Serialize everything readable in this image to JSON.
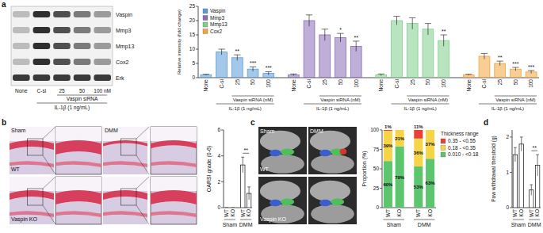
{
  "panel_labels": [
    "a",
    "b",
    "c",
    "d"
  ],
  "blot": {
    "bands": [
      "Vaspin",
      "Mmp3",
      "Mmp13",
      "Cox2",
      "Erk"
    ],
    "lanes": [
      "None",
      "C-si",
      "25",
      "50",
      "100 nM"
    ],
    "sirna_label": "Vaspin siRNA",
    "treatment_label": "IL-1β (1 ng/mL)"
  },
  "images_b": {
    "rows": [
      "WT",
      "Vaspin KO"
    ],
    "columns": [
      "Sham",
      "DMM"
    ]
  },
  "images_c": {
    "rows": [
      "WT",
      "Vaspin KO"
    ],
    "columns": [
      "Sham",
      "DMM"
    ]
  },
  "chart_data": [
    {
      "type": "bar",
      "y_label": "Relative intensity (fold change)",
      "categories": [
        "None",
        "C-si",
        "25",
        "50",
        "100"
      ],
      "group_label": "Vaspin siRNA (nM)",
      "treatment_label": "IL-1β (1 ng/mL)",
      "legend": "upper left",
      "ylim": [
        0,
        25
      ],
      "yticks": [
        0,
        5,
        10,
        15,
        20,
        25
      ],
      "series": [
        {
          "name": "Vaspin",
          "color": "#5a9bd8",
          "values": [
            1,
            9,
            7,
            3,
            1.5
          ],
          "errors": [
            0.2,
            1,
            1,
            0.8,
            0.6
          ],
          "significance": [
            null,
            null,
            "**",
            "***",
            "***"
          ]
        },
        {
          "name": "Mmp3",
          "color": "#8a6cb6",
          "values": [
            1,
            20,
            15,
            14,
            11
          ],
          "errors": [
            0.3,
            2,
            2,
            1.5,
            1.8
          ],
          "significance": [
            null,
            null,
            null,
            "*",
            "**"
          ]
        },
        {
          "name": "Mmp13",
          "color": "#7dcf8a",
          "values": [
            1,
            20,
            19,
            17,
            13
          ],
          "errors": [
            0.3,
            1.5,
            2,
            2,
            2
          ],
          "significance": [
            null,
            null,
            null,
            null,
            "**"
          ]
        },
        {
          "name": "Cox2",
          "color": "#f0a540",
          "values": [
            1,
            7.5,
            5,
            3,
            2
          ],
          "errors": [
            0.2,
            1,
            0.8,
            0.6,
            0.5
          ],
          "significance": [
            null,
            null,
            "**",
            "***",
            "***"
          ]
        }
      ]
    },
    {
      "type": "bar",
      "y_label": "OARSI grade (0-6)",
      "categories": [
        "WT",
        "KO",
        "WT",
        "KO"
      ],
      "groups": [
        "Sham",
        "DMM"
      ],
      "values": [
        0,
        0,
        3.3,
        1.1
      ],
      "errors": [
        0,
        0,
        0.6,
        0.5
      ],
      "color": "#ffffff",
      "annotations": [
        "**"
      ],
      "ylim": [
        0,
        6
      ],
      "yticks": [
        0,
        2,
        4,
        6
      ]
    },
    {
      "type": "bar",
      "stacked": true,
      "y_label": "Proportion (%)",
      "categories": [
        "WT",
        "KO",
        "WT",
        "KO"
      ],
      "groups": [
        "Sham",
        "DMM"
      ],
      "legend": "right",
      "legend_title": "Thickness range",
      "data_labels": true,
      "ylim": [
        0,
        100
      ],
      "yticks": [
        0,
        25,
        50,
        75,
        100
      ],
      "series": [
        {
          "name": "0.010 - <0.18",
          "color": "#5cc56e",
          "values": [
            60,
            79,
            53,
            63
          ],
          "value_labels": [
            "60%",
            "79%",
            "53%",
            "63%"
          ]
        },
        {
          "name": "0.18 - <0.35",
          "color": "#f5d547",
          "values": [
            39,
            21,
            36,
            37
          ],
          "value_labels": [
            "39%",
            "21%",
            "36%",
            "37%"
          ]
        },
        {
          "name": "0.35 - <0.55",
          "color": "#e8413a",
          "values": [
            1,
            0,
            11,
            0
          ],
          "value_labels": [
            "1%",
            null,
            "11%",
            null
          ]
        }
      ]
    },
    {
      "type": "bar",
      "y_label": "Paw withdrawal threshold (g)",
      "categories": [
        "WT",
        "KO",
        "WT",
        "KO"
      ],
      "groups": [
        "Sham",
        "DMM"
      ],
      "values": [
        1.5,
        1.8,
        0.5,
        1.2
      ],
      "errors": [
        0.2,
        0.2,
        0.15,
        0.3
      ],
      "color": "#ffffff",
      "annotations": [
        "**"
      ],
      "ylim": [
        0,
        2.2
      ],
      "yticks": [
        0,
        1,
        2
      ]
    }
  ]
}
